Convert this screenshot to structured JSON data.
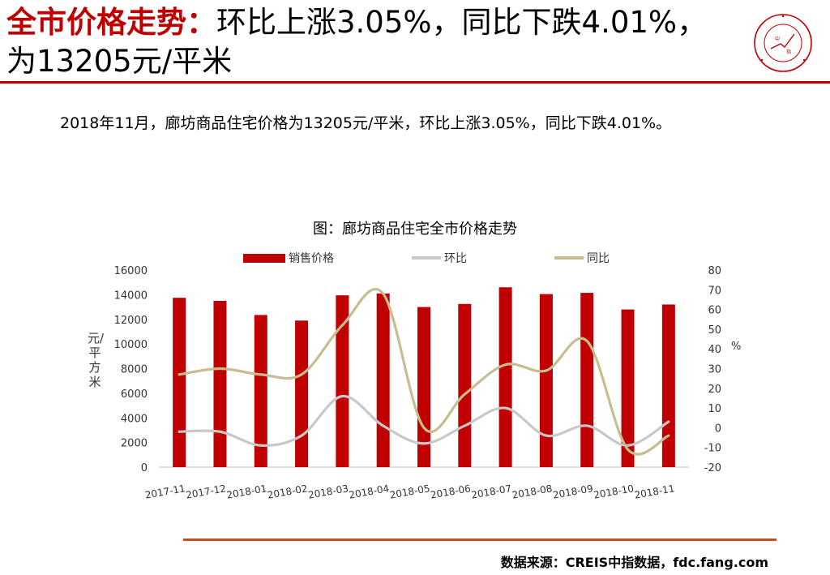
{
  "header": {
    "title_bold": "全市价格走势：",
    "title_rest": "环比上涨3.05%，同比下跌4.01%，为13205元/平米"
  },
  "logo": {
    "text": "中国指数研究院 CHINA INDEX ACADEMY",
    "color": "#c00000"
  },
  "summary": "2018年11月，廊坊商品住宅价格为13205元/平米，环比上涨3.05%，同比下跌4.01%。",
  "chart_data": {
    "type": "bar",
    "title": "图：廊坊商品住宅全市价格走势",
    "categories": [
      "2017-11",
      "2017-12",
      "2018-01",
      "2018-02",
      "2018-03",
      "2018-04",
      "2018-05",
      "2018-06",
      "2018-07",
      "2018-08",
      "2018-09",
      "2018-10",
      "2018-11"
    ],
    "series": [
      {
        "name": "销售价格",
        "type": "bar",
        "axis": "left",
        "color": "#c00000",
        "values": [
          13750,
          13500,
          12350,
          11900,
          13950,
          14100,
          13000,
          13250,
          14600,
          14050,
          14150,
          12800,
          13205
        ]
      },
      {
        "name": "环比",
        "type": "line",
        "axis": "right",
        "color": "#c8c8c8",
        "values": [
          -2,
          -2,
          -9,
          -4,
          16,
          1,
          -8,
          1,
          10,
          -4,
          1,
          -9,
          3.05
        ]
      },
      {
        "name": "同比",
        "type": "line",
        "axis": "right",
        "color": "#c8bc92",
        "values": [
          27,
          30,
          27,
          27,
          52,
          68,
          0,
          17,
          32,
          29,
          44,
          -11,
          -4.01
        ]
      }
    ],
    "ylabel": "元/平方米",
    "y2label": "%",
    "ylim": [
      0,
      16000
    ],
    "y2lim": [
      -20,
      80
    ],
    "yticks": [
      0,
      2000,
      4000,
      6000,
      8000,
      10000,
      12000,
      14000,
      16000
    ],
    "y2ticks": [
      -20,
      -10,
      0,
      10,
      20,
      30,
      40,
      50,
      60,
      70,
      80
    ],
    "legend": "top",
    "grid": false
  },
  "footer": {
    "source": "数据来源：CREIS中指数据，fdc.fang.com"
  }
}
